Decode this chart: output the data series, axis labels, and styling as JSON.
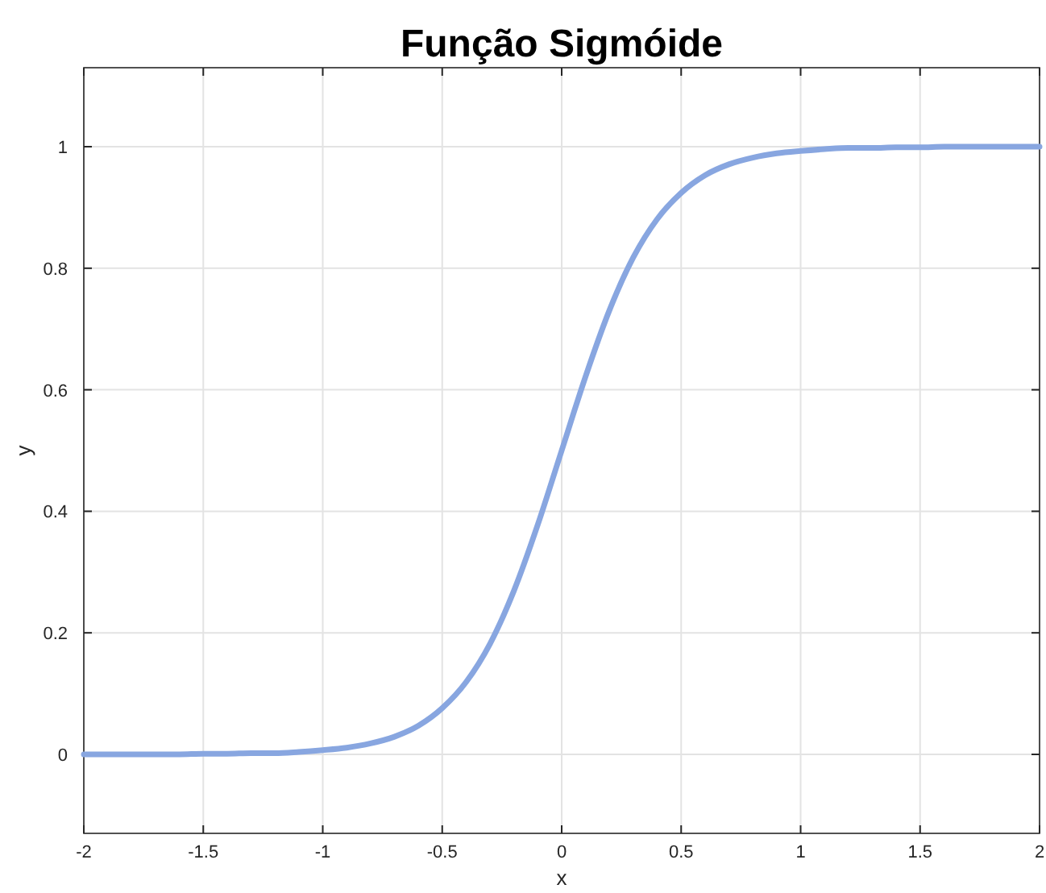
{
  "chart_data": {
    "type": "line",
    "title": "Função Sigmóide",
    "xlabel": "x",
    "ylabel": "y",
    "x": [
      -2,
      -1.9,
      -1.8,
      -1.7,
      -1.6,
      -1.5,
      -1.4,
      -1.3,
      -1.2,
      -1.1,
      -1,
      -0.9,
      -0.8,
      -0.7,
      -0.6,
      -0.5,
      -0.4,
      -0.3,
      -0.2,
      -0.1,
      0,
      0.1,
      0.2,
      0.3,
      0.4,
      0.5,
      0.6,
      0.7,
      0.8,
      0.9,
      1,
      1.1,
      1.2,
      1.3,
      1.4,
      1.5,
      1.6,
      1.7,
      1.8,
      1.9,
      2
    ],
    "series": [
      {
        "color": "#88a6e0",
        "values": [
          0,
          0,
          0,
          0,
          0,
          0.001,
          0.001,
          0.002,
          0.002,
          0.004,
          0.007,
          0.011,
          0.018,
          0.029,
          0.047,
          0.076,
          0.119,
          0.182,
          0.269,
          0.378,
          0.5,
          0.622,
          0.731,
          0.818,
          0.881,
          0.924,
          0.953,
          0.971,
          0.982,
          0.989,
          0.993,
          0.996,
          0.998,
          0.998,
          0.999,
          0.999,
          1,
          1,
          1,
          1,
          1
        ]
      }
    ],
    "xlim": [
      -2,
      2
    ],
    "ylim": [
      -0.13,
      1.13
    ],
    "xticks": [
      -2,
      -1.5,
      -1,
      -0.5,
      0,
      0.5,
      1,
      1.5,
      2
    ],
    "yticks": [
      0,
      0.2,
      0.4,
      0.6,
      0.8,
      1
    ],
    "grid": true,
    "marker": "none",
    "line_style": "solid"
  }
}
